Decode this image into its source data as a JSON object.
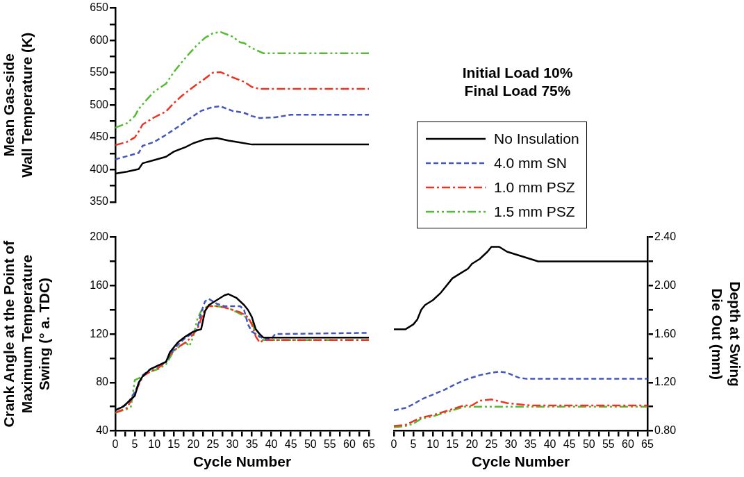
{
  "chart_data": [
    {
      "type": "line",
      "ylabel": "Mean Gas-side\nWall Temperature (K)",
      "annotations": [
        "Initial Load 10%",
        "Final Load 75%"
      ],
      "legend": "right",
      "tick_labels": "y",
      "grid": false,
      "marker": "none",
      "xlim": [
        0,
        65
      ],
      "ylim": [
        350,
        650
      ],
      "yticks": [
        350,
        {
          "value": 375,
          "label": null
        },
        400,
        {
          "value": 425,
          "label": null
        },
        450,
        {
          "value": 475,
          "label": null
        },
        500,
        {
          "value": 525,
          "label": null
        },
        550,
        {
          "value": 575,
          "label": null
        },
        600,
        {
          "value": 625,
          "label": null
        },
        650
      ],
      "series": [
        {
          "name": "No Insulation",
          "color": "#000000",
          "line_style": "solid",
          "x": [
            0,
            3,
            6,
            7,
            10,
            13,
            15,
            18,
            20,
            23,
            26,
            29,
            32,
            35,
            40,
            65
          ],
          "values": [
            394,
            397,
            401,
            410,
            415,
            420,
            428,
            435,
            441,
            447,
            449,
            445,
            442,
            439,
            439,
            439
          ]
        },
        {
          "name": "4.0 mm SN",
          "color": "#4455bb",
          "line_style": "dashed",
          "x": [
            0,
            3,
            6,
            7,
            10,
            13,
            16,
            19,
            22,
            25,
            27,
            30,
            33,
            35,
            37,
            41,
            45,
            65
          ],
          "values": [
            416,
            421,
            426,
            437,
            443,
            454,
            466,
            479,
            491,
            497,
            498,
            491,
            488,
            483,
            480,
            481,
            485,
            485
          ]
        },
        {
          "name": "1.0 mm PSZ",
          "color": "#ee3322",
          "line_style": "dashdot",
          "x": [
            0,
            3,
            5,
            6,
            7,
            10,
            13,
            15,
            17,
            20,
            23,
            25,
            27,
            30,
            33,
            35,
            37,
            65
          ],
          "values": [
            438,
            443,
            450,
            459,
            470,
            481,
            490,
            503,
            514,
            528,
            541,
            550,
            551,
            543,
            536,
            528,
            525,
            525
          ]
        },
        {
          "name": "1.5 mm PSZ",
          "color": "#55bb33",
          "line_style": "dashdotdot",
          "x": [
            0,
            3,
            5,
            6,
            8,
            10,
            13,
            15,
            17,
            19,
            21,
            23,
            25,
            27,
            30,
            32,
            33,
            35,
            38,
            65
          ],
          "values": [
            465,
            472,
            483,
            494,
            508,
            521,
            533,
            551,
            566,
            580,
            593,
            604,
            611,
            613,
            606,
            597,
            596,
            588,
            580,
            580
          ]
        }
      ]
    },
    {
      "type": "line",
      "xlabel": "Cycle Number",
      "ylabel": "Crank Angle at the Point of\nMaximum Temperature\nSwing (° a. TDC)",
      "grid": false,
      "marker": "none",
      "xlim": [
        0,
        65
      ],
      "ylim": [
        40,
        200
      ],
      "xticks": [
        0,
        {
          "value": 2.5,
          "label": null
        },
        5,
        {
          "value": 7.5,
          "label": null
        },
        10,
        {
          "value": 12.5,
          "label": null
        },
        15,
        {
          "value": 17.5,
          "label": null
        },
        20,
        {
          "value": 22.5,
          "label": null
        },
        25,
        {
          "value": 27.5,
          "label": null
        },
        30,
        {
          "value": 32.5,
          "label": null
        },
        35,
        {
          "value": 37.5,
          "label": null
        },
        40,
        {
          "value": 42.5,
          "label": null
        },
        45,
        {
          "value": 47.5,
          "label": null
        },
        50,
        {
          "value": 52.5,
          "label": null
        },
        55,
        {
          "value": 57.5,
          "label": null
        },
        60,
        {
          "value": 62.5,
          "label": null
        },
        65
      ],
      "yticks": [
        40,
        {
          "value": 60,
          "label": null
        },
        80,
        {
          "value": 100,
          "label": null
        },
        120,
        {
          "value": 140,
          "label": null
        },
        160,
        {
          "value": 180,
          "label": null
        },
        200
      ],
      "series": [
        {
          "color": "#000000",
          "line_style": "solid",
          "x": [
            0,
            2,
            4,
            5,
            6,
            7,
            9,
            11,
            13,
            14,
            16,
            18,
            20,
            22,
            23,
            24,
            26,
            28,
            29,
            31,
            33,
            34,
            35,
            36,
            37,
            38,
            65
          ],
          "values": [
            57,
            60,
            66,
            69,
            80,
            85,
            91,
            94,
            97,
            105,
            113,
            118,
            122,
            124,
            139,
            144,
            148,
            152,
            153,
            150,
            144,
            140,
            134,
            124,
            120,
            117,
            117
          ]
        },
        {
          "color": "#4455bb",
          "line_style": "dashed",
          "x": [
            0,
            3,
            5,
            7,
            9,
            11,
            13,
            14,
            16,
            18,
            20,
            21,
            22,
            23,
            24,
            26,
            28,
            32,
            33,
            34,
            35,
            36,
            38,
            40,
            41,
            65
          ],
          "values": [
            57,
            62,
            72,
            86,
            91,
            94,
            97,
            103,
            111,
            117,
            121,
            124,
            138,
            147,
            149,
            145,
            143,
            143,
            140,
            128,
            122,
            120,
            116,
            116,
            120,
            121
          ]
        },
        {
          "color": "#ee3322",
          "line_style": "dashdot",
          "x": [
            0,
            3,
            5,
            7,
            9,
            11,
            13,
            14,
            16,
            18,
            19,
            21,
            23,
            24,
            26,
            28,
            30,
            32,
            34,
            35,
            36,
            37,
            38,
            65
          ],
          "values": [
            55,
            59,
            71,
            85,
            89,
            92,
            97,
            103,
            109,
            113,
            116,
            124,
            141,
            143,
            143,
            142,
            140,
            138,
            134,
            128,
            118,
            113,
            115,
            115
          ]
        },
        {
          "color": "#55bb33",
          "line_style": "dashdotdot",
          "x": [
            0,
            3,
            4,
            5,
            7,
            9,
            11,
            13,
            15,
            17,
            18,
            19,
            20,
            21,
            22,
            24,
            26,
            28,
            30,
            33,
            35,
            36,
            38,
            65
          ],
          "values": [
            55,
            58,
            60,
            82,
            85,
            89,
            91,
            95,
            106,
            111,
            113,
            110,
            118,
            132,
            139,
            144,
            143,
            142,
            140,
            135,
            130,
            120,
            115,
            115
          ]
        }
      ]
    },
    {
      "type": "line",
      "xlabel": "Cycle Number",
      "y2label": "Depth at Swing\nDie Out (mm)",
      "grid": false,
      "marker": "none",
      "xlim": [
        0,
        65
      ],
      "y2lim": [
        0.8,
        2.4
      ],
      "xticks": [
        0,
        {
          "value": 2.5,
          "label": null
        },
        5,
        {
          "value": 7.5,
          "label": null
        },
        10,
        {
          "value": 12.5,
          "label": null
        },
        15,
        {
          "value": 17.5,
          "label": null
        },
        20,
        {
          "value": 22.5,
          "label": null
        },
        25,
        {
          "value": 27.5,
          "label": null
        },
        30,
        {
          "value": 32.5,
          "label": null
        },
        35,
        {
          "value": 37.5,
          "label": null
        },
        40,
        {
          "value": 42.5,
          "label": null
        },
        45,
        {
          "value": 47.5,
          "label": null
        },
        50,
        {
          "value": 52.5,
          "label": null
        },
        55,
        {
          "value": 57.5,
          "label": null
        },
        60,
        {
          "value": 62.5,
          "label": null
        },
        65
      ],
      "y2ticks": [
        {
          "value": 0.8,
          "label": "0.80"
        },
        {
          "value": 1.0,
          "label": null
        },
        {
          "value": 1.2,
          "label": "1.20"
        },
        {
          "value": 1.4,
          "label": null
        },
        {
          "value": 1.6,
          "label": "1.60"
        },
        {
          "value": 1.8,
          "label": null
        },
        {
          "value": 2.0,
          "label": "2.00"
        },
        {
          "value": 2.2,
          "label": null
        },
        {
          "value": 2.4,
          "label": "2.40"
        }
      ],
      "series": [
        {
          "color": "#000000",
          "line_style": "solid",
          "axis": "y2",
          "x": [
            0,
            3,
            5,
            6,
            7,
            8,
            10,
            12,
            14,
            15,
            17,
            19,
            20,
            22,
            24,
            25,
            27,
            29,
            31,
            35,
            37,
            65
          ],
          "values": [
            1.64,
            1.64,
            1.68,
            1.72,
            1.8,
            1.84,
            1.88,
            1.94,
            2.02,
            2.06,
            2.1,
            2.14,
            2.18,
            2.22,
            2.28,
            2.32,
            2.32,
            2.28,
            2.26,
            2.22,
            2.2,
            2.2
          ]
        },
        {
          "color": "#4455bb",
          "line_style": "dashed",
          "axis": "y2",
          "x": [
            0,
            3,
            5,
            7,
            10,
            13,
            16,
            19,
            22,
            25,
            27,
            29,
            32,
            34,
            65
          ],
          "values": [
            0.97,
            0.99,
            1.02,
            1.06,
            1.1,
            1.14,
            1.19,
            1.23,
            1.26,
            1.28,
            1.29,
            1.28,
            1.24,
            1.23,
            1.23
          ]
        },
        {
          "color": "#ee3322",
          "line_style": "dashdot",
          "axis": "y2",
          "x": [
            0,
            3,
            5,
            7,
            10,
            13,
            16,
            18,
            20,
            22,
            25,
            29,
            32,
            35,
            65
          ],
          "values": [
            0.84,
            0.85,
            0.88,
            0.91,
            0.93,
            0.96,
            0.99,
            1.01,
            1.01,
            1.05,
            1.06,
            1.03,
            1.02,
            1.01,
            1.01
          ]
        },
        {
          "color": "#55bb33",
          "line_style": "dashdotdot",
          "axis": "y2",
          "x": [
            0,
            3,
            5,
            7,
            10,
            13,
            16,
            18,
            65
          ],
          "values": [
            0.83,
            0.84,
            0.86,
            0.9,
            0.92,
            0.95,
            0.98,
            1.0,
            1.0
          ]
        }
      ]
    }
  ]
}
